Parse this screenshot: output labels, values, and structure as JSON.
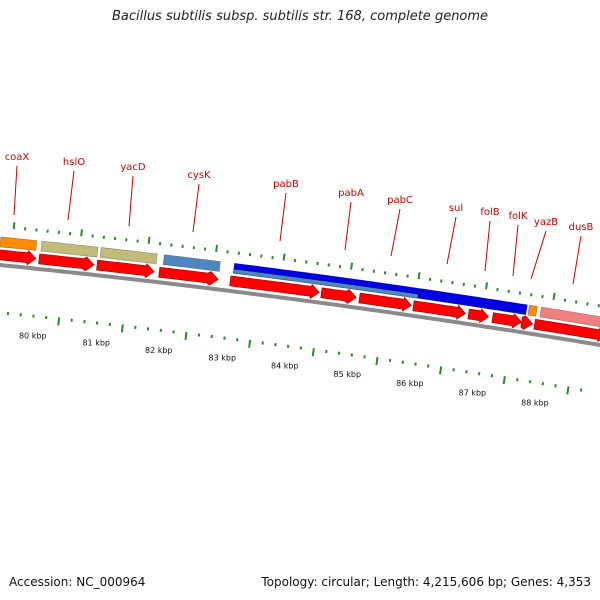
{
  "title": "Bacillus subtilis subsp. subtilis str. 168, complete genome",
  "footer": {
    "accession_label": "Accession:",
    "accession": "NC_000964",
    "summary": "Topology: circular; Length: 4,215,606 bp; Genes: 4,353"
  },
  "colors": {
    "backbone": "#8a8a8a",
    "cds": "#ff0000",
    "gene_label": "#cc0000",
    "tick": "#2a8a2a",
    "orange_feature": "#ff8c00",
    "olive_feature": "#c2bc7a",
    "steelblue_feature": "#4f86c0",
    "blue_feature": "#0000e0",
    "pink_feature": "#f08080"
  },
  "ruler": {
    "labels": [
      "80 kbp",
      "81 kbp",
      "82 kbp",
      "83 kbp",
      "84 kbp",
      "85 kbp",
      "86 kbp",
      "87 kbp",
      "88 kbp"
    ]
  },
  "genes": [
    {
      "name": "coaX"
    },
    {
      "name": "hslO"
    },
    {
      "name": "yacD"
    },
    {
      "name": "cysK"
    },
    {
      "name": "pabB"
    },
    {
      "name": "pabA"
    },
    {
      "name": "pabC"
    },
    {
      "name": "sul"
    },
    {
      "name": "folB"
    },
    {
      "name": "folK"
    },
    {
      "name": "yazB"
    },
    {
      "name": "dusB"
    }
  ]
}
